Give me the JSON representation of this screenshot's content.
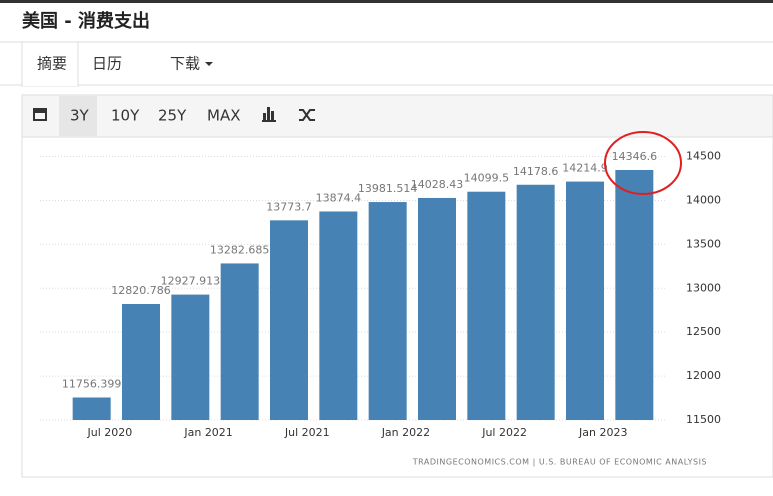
{
  "header": {
    "title": "美国 - 消费支出"
  },
  "tabs": [
    "摘要",
    "日历",
    "下载"
  ],
  "ranges": [
    "3Y",
    "10Y",
    "25Y",
    "MAX"
  ],
  "chart_data": {
    "type": "bar",
    "categories": [
      null,
      null,
      null,
      null,
      null,
      null,
      null,
      null,
      null,
      null,
      null,
      null
    ],
    "values": [
      11756.399,
      12820.786,
      12927.913,
      13282.685,
      13773.7,
      13874.4,
      13981.514,
      14028.43,
      14099.5,
      14178.6,
      14214.9,
      14346.6
    ],
    "color": "#4682b4",
    "xtick_labels": [
      "Jul 2020",
      "Jan 2021",
      "Jul 2021",
      "Jan 2022",
      "Jul 2022",
      "Jan 2023"
    ],
    "ylim": [
      11500,
      14620
    ],
    "yticks": [
      11500,
      12000,
      12500,
      13000,
      13500,
      14000,
      14500
    ],
    "grid": true,
    "source": "TRADINGECONOMICS.COM | U.S. BUREAU OF ECONOMIC ANALYSIS"
  }
}
